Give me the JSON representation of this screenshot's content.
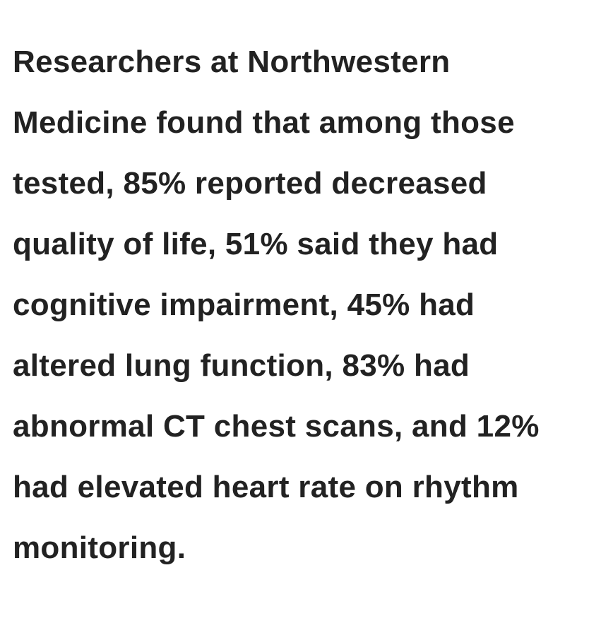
{
  "paragraph": {
    "lines": [
      "Researchers at Northwestern",
      "Medicine found that among those",
      "tested, 85% reported decreased",
      "quality of life, 51% said they had",
      "cognitive impairment, 45% had",
      "altered lung function, 83% had",
      "abnormal CT chest scans, and 12%",
      "had elevated heart rate on rhythm",
      "monitoring."
    ]
  }
}
